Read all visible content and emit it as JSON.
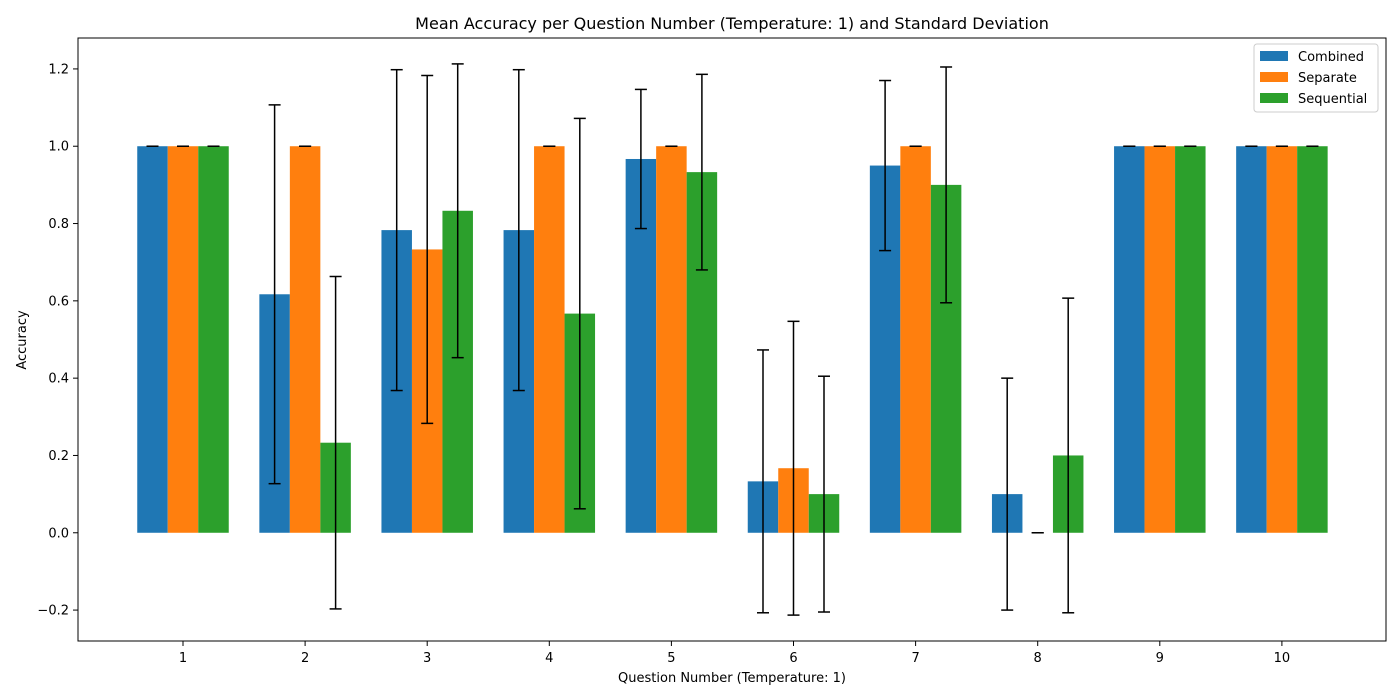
{
  "chart_data": {
    "type": "bar",
    "title": "Mean Accuracy per Question Number (Temperature: 1) and Standard Deviation",
    "xlabel": "Question Number (Temperature: 1)",
    "ylabel": "Accuracy",
    "categories": [
      "1",
      "2",
      "3",
      "4",
      "5",
      "6",
      "7",
      "8",
      "9",
      "10"
    ],
    "ylim": [
      -0.28,
      1.28
    ],
    "yticks": [
      -0.2,
      0.0,
      0.2,
      0.4,
      0.6,
      0.8,
      1.0,
      1.2
    ],
    "ytick_labels": [
      "−0.2",
      "0.0",
      "0.2",
      "0.4",
      "0.6",
      "0.8",
      "1.0",
      "1.2"
    ],
    "legend_position": "top-right",
    "grid": false,
    "series": [
      {
        "name": "Combined",
        "color": "#1f77b4",
        "values": [
          1.0,
          0.617,
          0.783,
          0.783,
          0.967,
          0.133,
          0.95,
          0.1,
          1.0,
          1.0
        ],
        "std": [
          0.0,
          0.49,
          0.415,
          0.415,
          0.18,
          0.34,
          0.22,
          0.3,
          0.0,
          0.0
        ]
      },
      {
        "name": "Separate",
        "color": "#ff7f0e",
        "values": [
          1.0,
          1.0,
          0.733,
          1.0,
          1.0,
          0.167,
          1.0,
          0.0,
          1.0,
          1.0
        ],
        "std": [
          0.0,
          0.0,
          0.45,
          0.0,
          0.0,
          0.38,
          0.0,
          0.0,
          0.0,
          0.0
        ]
      },
      {
        "name": "Sequential",
        "color": "#2ca02c",
        "values": [
          1.0,
          0.233,
          0.833,
          0.567,
          0.933,
          0.1,
          0.9,
          0.2,
          1.0,
          1.0
        ],
        "std": [
          0.0,
          0.43,
          0.38,
          0.505,
          0.253,
          0.305,
          0.305,
          0.407,
          0.0,
          0.0
        ]
      }
    ]
  }
}
